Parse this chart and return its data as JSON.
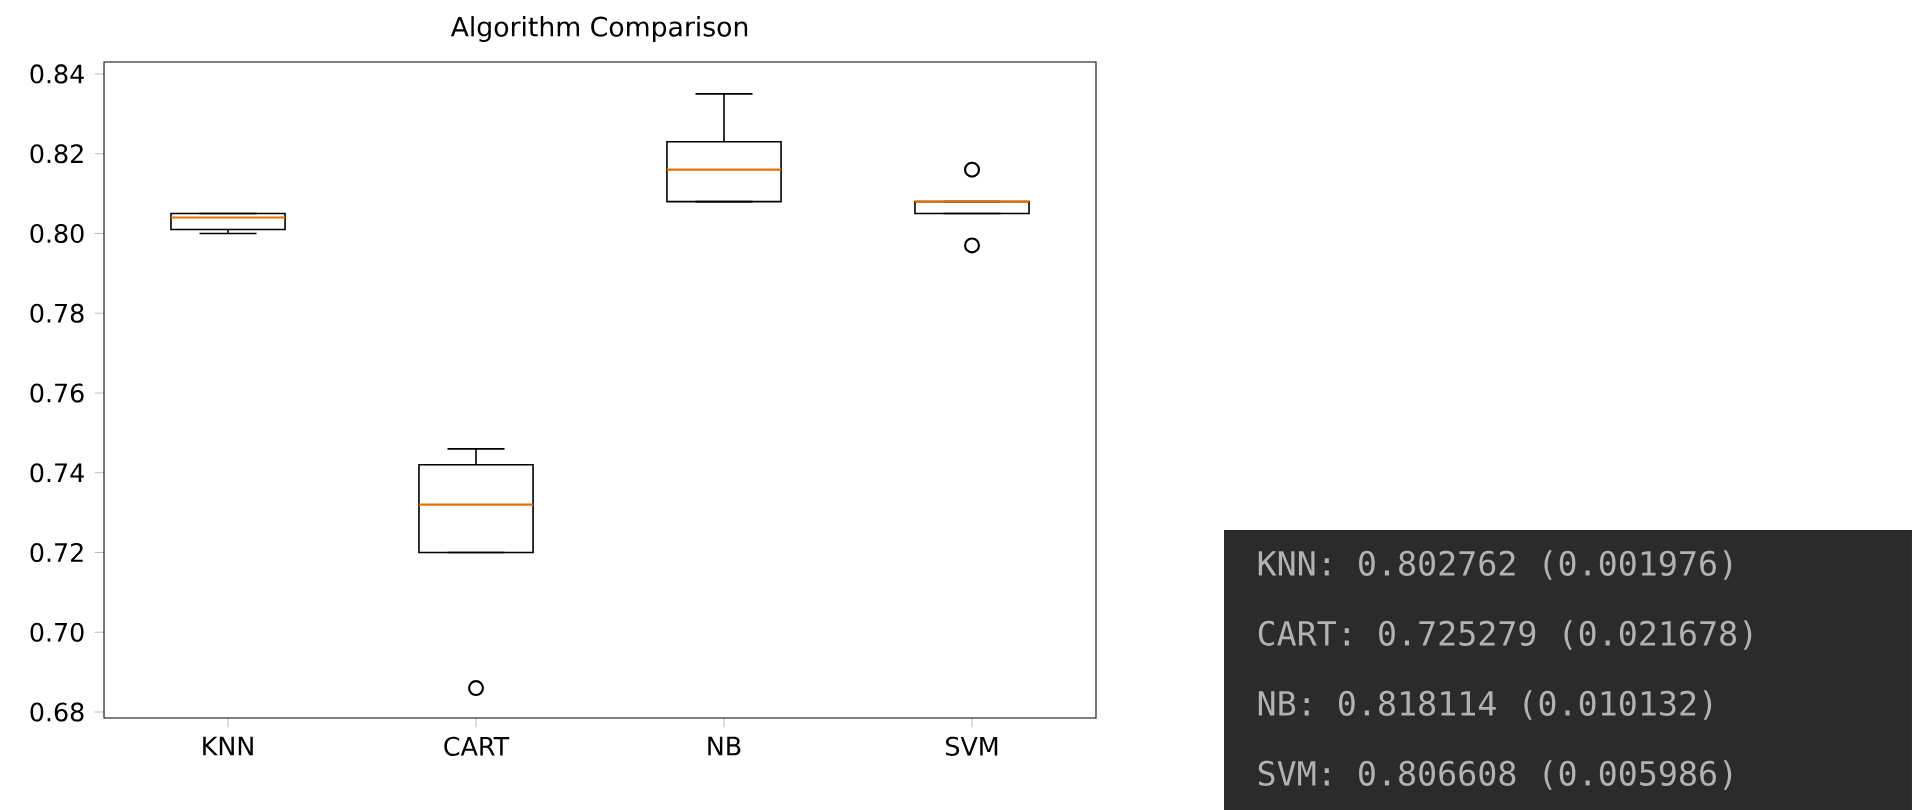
{
  "chart_data": [
    {
      "type": "box",
      "title": "Algorithm Comparison",
      "categories": [
        "KNN",
        "CART",
        "NB",
        "SVM"
      ],
      "boxes": [
        {
          "low": 0.8,
          "q1": 0.801,
          "median": 0.804,
          "q3": 0.805,
          "high": 0.805
        },
        {
          "low": 0.72,
          "q1": 0.72,
          "median": 0.732,
          "q3": 0.742,
          "high": 0.746,
          "outliers": [
            0.686
          ]
        },
        {
          "low": 0.808,
          "q1": 0.808,
          "median": 0.816,
          "q3": 0.823,
          "high": 0.835
        },
        {
          "low": 0.805,
          "q1": 0.805,
          "median": 0.808,
          "q3": 0.808,
          "high": 0.808,
          "outliers": [
            0.816,
            0.797
          ]
        }
      ],
      "ylim": [
        0.6785,
        0.843
      ],
      "yticks": [
        0.68,
        {
          "value": 0.7,
          "label": "0.70"
        },
        0.72,
        0.74,
        0.76,
        0.78,
        {
          "value": 0.8,
          "label": "0.80"
        },
        0.82,
        0.84
      ]
    },
    {
      "type": "other",
      "annotations": [
        "KNN: 0.802762 (0.001976)",
        "CART: 0.725279 (0.021678)",
        "NB: 0.818114 (0.010132)",
        "SVM: 0.806608 (0.005986)"
      ]
    }
  ]
}
